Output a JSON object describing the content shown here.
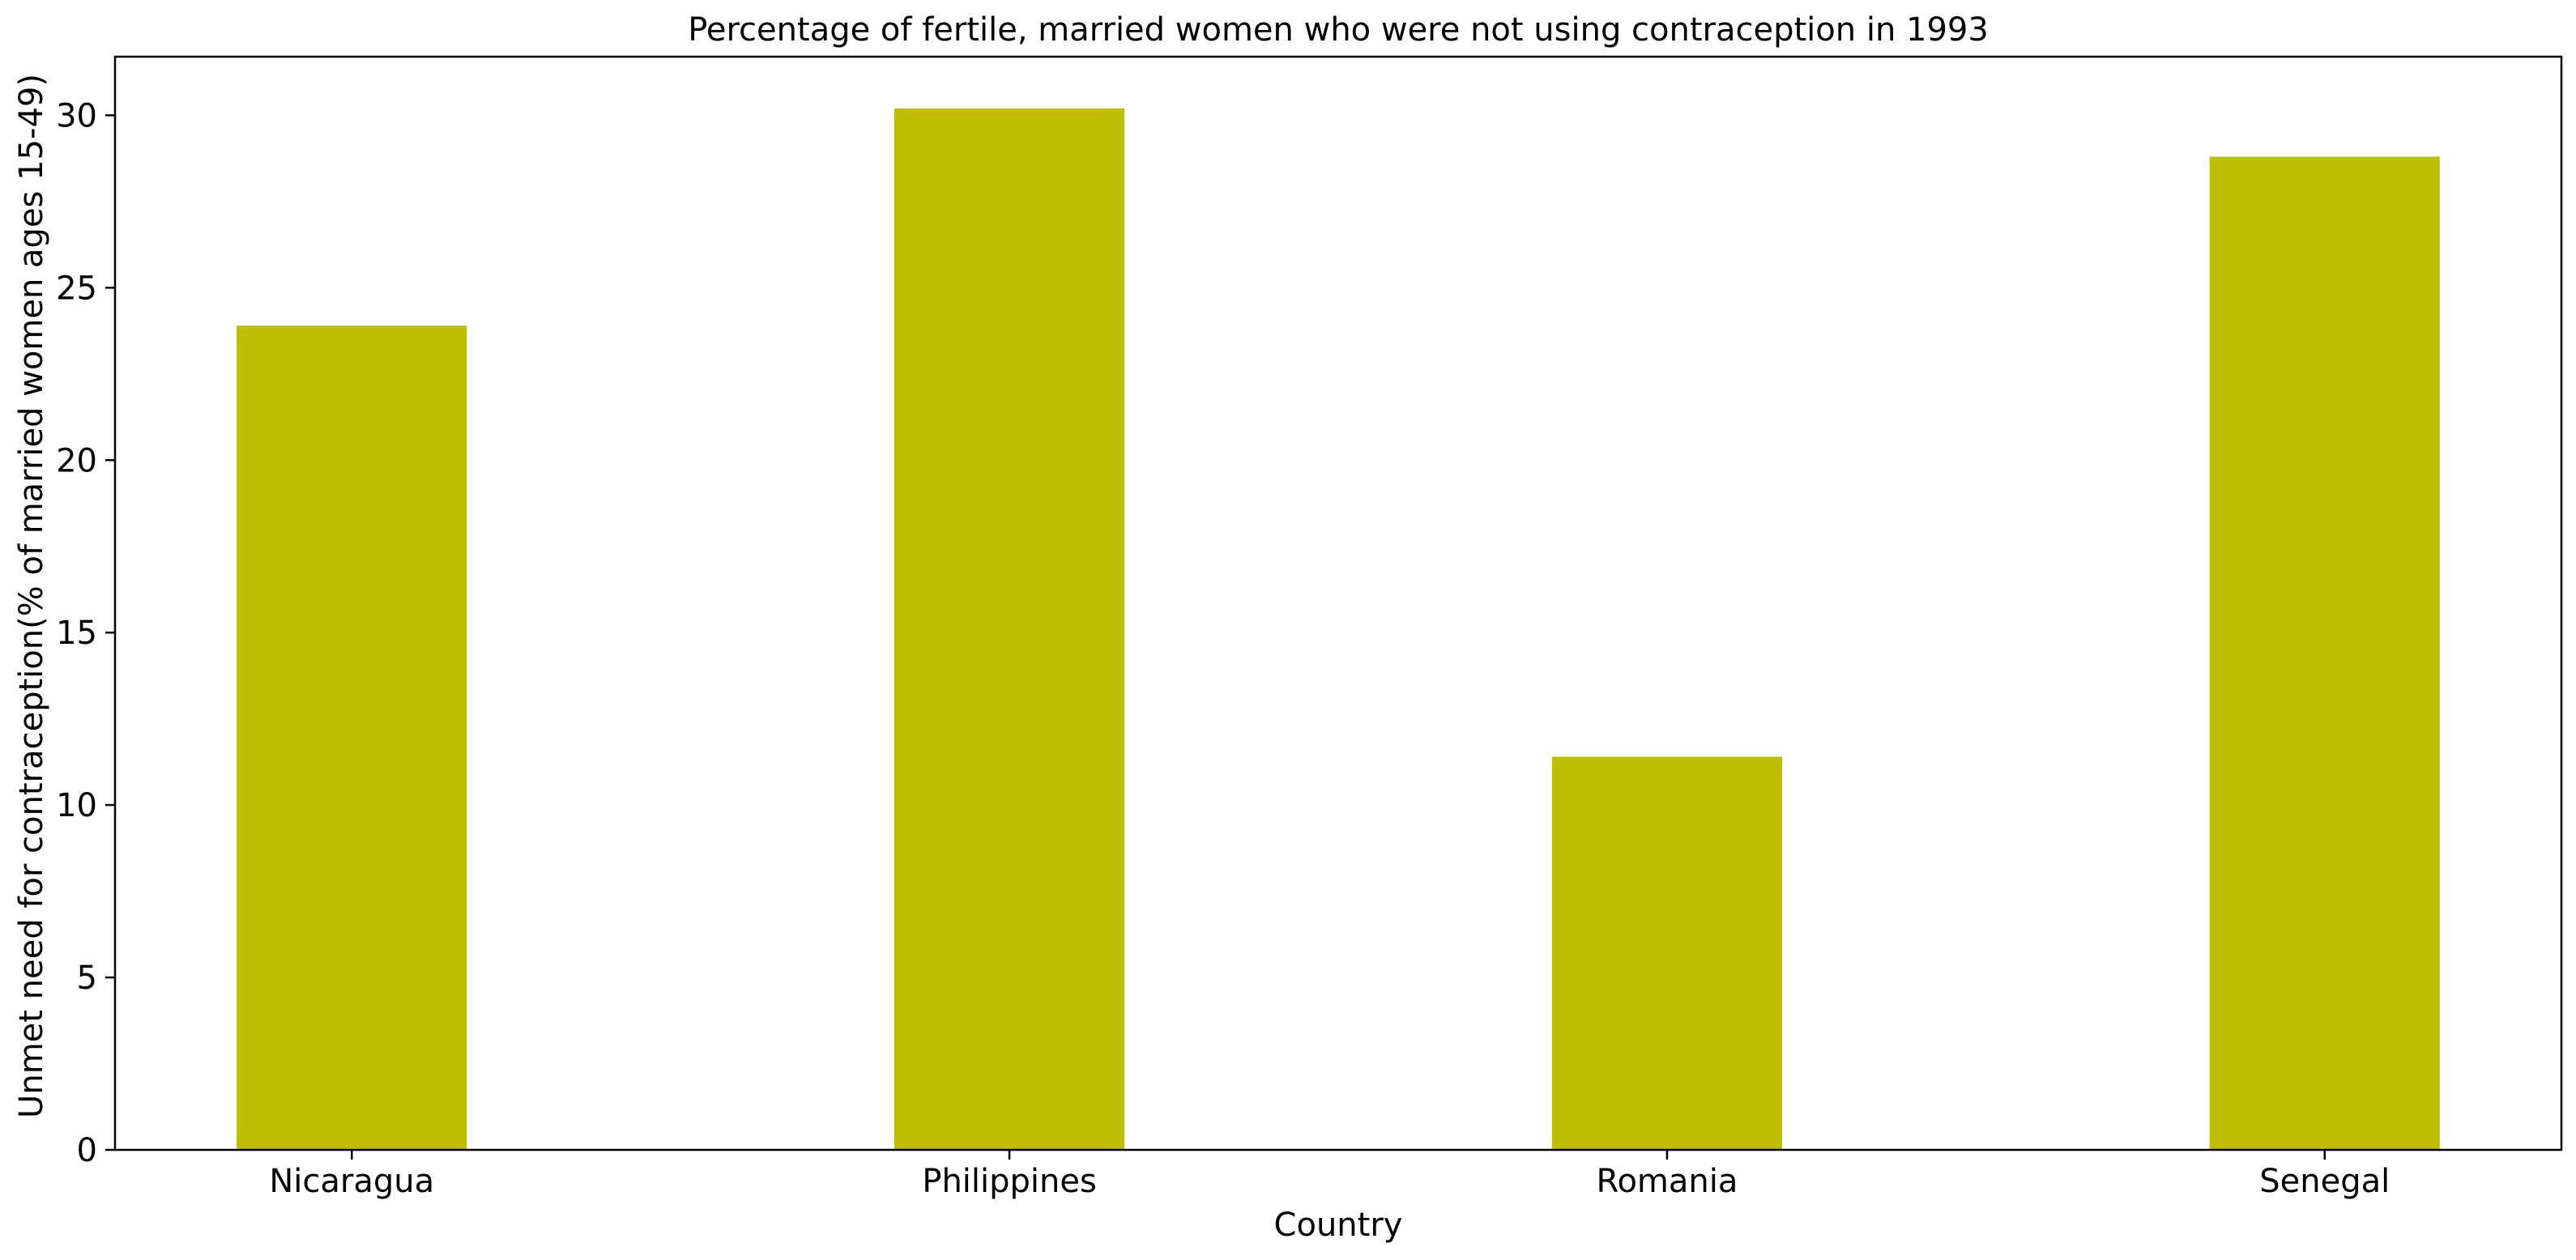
{
  "chart_data": {
    "type": "bar",
    "title": "Percentage of fertile, married women who were not using contraception in 1993",
    "xlabel": "Country",
    "ylabel": "Unmet need for contraception(% of married women ages 15-49)",
    "categories": [
      "Nicaragua",
      "Philippines",
      "Romania",
      "Senegal"
    ],
    "values": [
      23.9,
      30.2,
      11.4,
      28.8
    ],
    "ylim": [
      0,
      31.7
    ],
    "yticks": [
      0,
      5,
      10,
      15,
      20,
      25,
      30
    ],
    "grid": false,
    "legend": "none",
    "bar_color": "#bfbf00"
  }
}
